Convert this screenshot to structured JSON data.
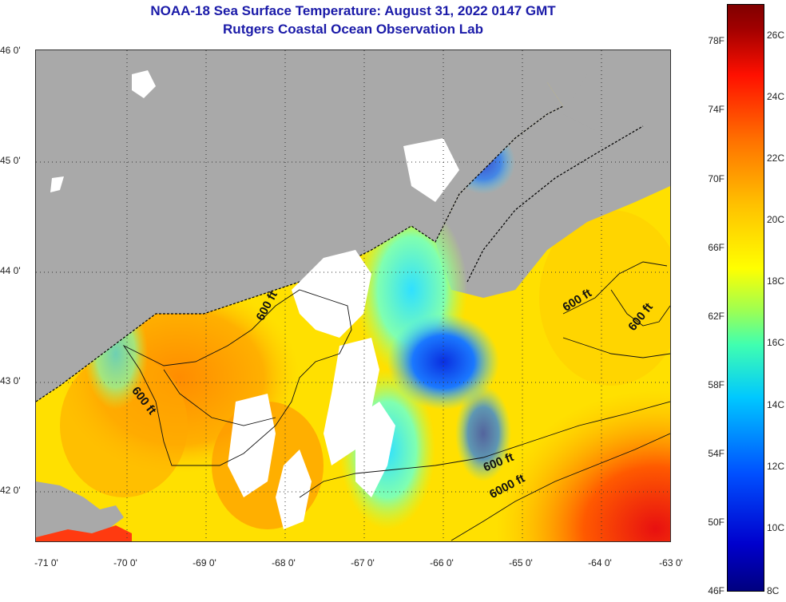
{
  "header": {
    "title": "NOAA-18 Sea Surface Temperature:  August 31, 2022 0147 GMT",
    "subtitle": "Rutgers Coastal Ocean Observation Lab"
  },
  "map": {
    "longitude_labels": [
      "-71 0'",
      "-70 0'",
      "-69 0'",
      "-68 0'",
      "-67 0'",
      "-66 0'",
      "-65 0'",
      "-64 0'",
      "-63 0'"
    ],
    "latitude_labels": [
      "46 0'",
      "45 0'",
      "44 0'",
      "43 0'",
      "42 0'"
    ],
    "contour_labels": [
      "600 ft",
      "600 ft",
      "600 ft",
      "600 ft",
      "600 ft",
      "6000 ft"
    ],
    "colors": {
      "land": "#a9a9a9",
      "cloud": "#ffffff",
      "coastline": "#000000"
    }
  },
  "colorbar": {
    "fahrenheit_labels": [
      "78F",
      "74F",
      "70F",
      "66F",
      "62F",
      "58F",
      "54F",
      "50F",
      "46F"
    ],
    "celsius_labels": [
      "26C",
      "24C",
      "22C",
      "20C",
      "18C",
      "16C",
      "14C",
      "12C",
      "10C",
      "8C"
    ],
    "range_celsius": [
      8,
      27
    ]
  }
}
